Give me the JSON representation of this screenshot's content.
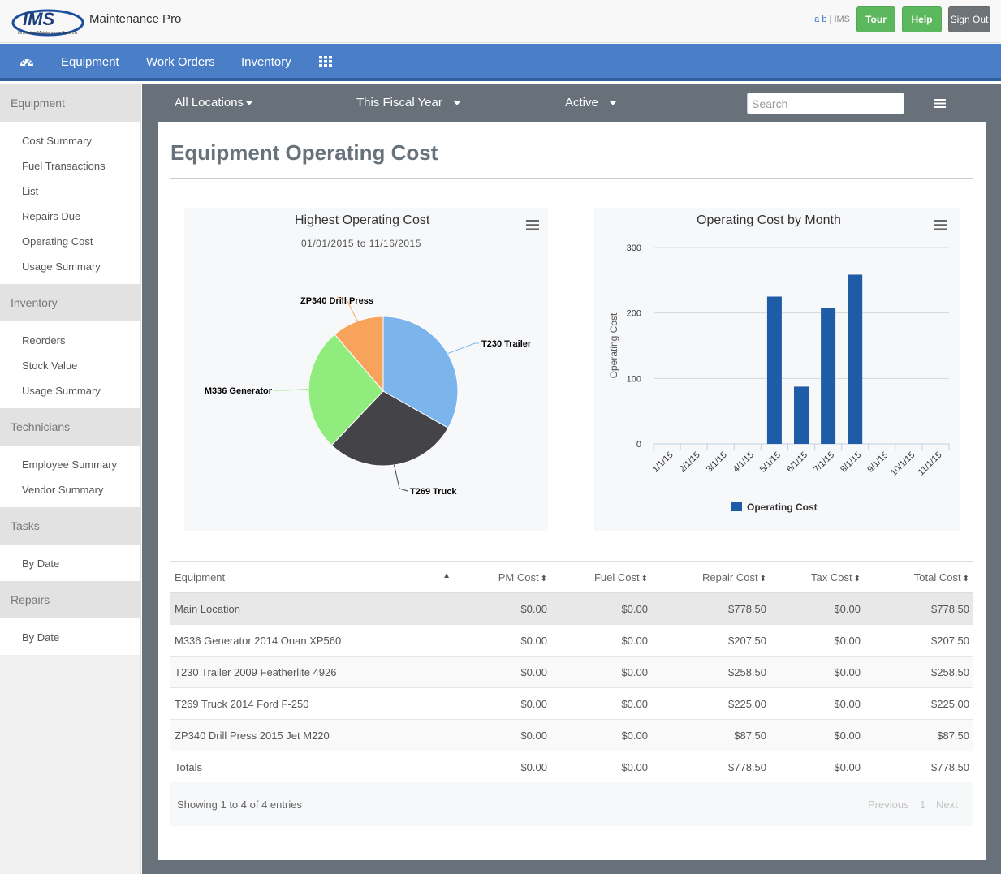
{
  "header": {
    "app_title": "Maintenance Pro",
    "logo_text": "IMS",
    "logo_tagline": "Innovative Maintenance Systems",
    "user_initials": "a b",
    "user_sep": "|",
    "user_company": "IMS",
    "tour_label": "Tour",
    "help_label": "Help",
    "signout_label": "Sign Out"
  },
  "nav": {
    "items": [
      "Equipment",
      "Work Orders",
      "Inventory"
    ]
  },
  "sidebar": {
    "sections": [
      {
        "title": "Equipment",
        "items": [
          "Cost Summary",
          "Fuel Transactions",
          "List",
          "Repairs Due",
          "Operating Cost",
          "Usage Summary"
        ]
      },
      {
        "title": "Inventory",
        "items": [
          "Reorders",
          "Stock Value",
          "Usage Summary"
        ]
      },
      {
        "title": "Technicians",
        "items": [
          "Employee Summary",
          "Vendor Summary"
        ]
      },
      {
        "title": "Tasks",
        "items": [
          "By Date"
        ]
      },
      {
        "title": "Repairs",
        "items": [
          "By Date"
        ]
      }
    ]
  },
  "filters": {
    "location": "All Locations",
    "period": "This Fiscal Year",
    "status": "Active",
    "search_placeholder": "Search"
  },
  "page": {
    "title": "Equipment Operating Cost"
  },
  "chart_data": [
    {
      "type": "pie",
      "title": "Highest Operating Cost",
      "subtitle": "01/01/2015 to 11/16/2015",
      "slices": [
        {
          "label": "T230 Trailer",
          "value": 258.5,
          "color": "#7cb5ec"
        },
        {
          "label": "T269 Truck",
          "value": 225.0,
          "color": "#434348"
        },
        {
          "label": "M336 Generator",
          "value": 207.5,
          "color": "#90ed7d"
        },
        {
          "label": "ZP340 Drill Press",
          "value": 87.5,
          "color": "#f7a35c"
        }
      ]
    },
    {
      "type": "bar",
      "title": "Operating Cost by Month",
      "ylabel": "Operating Cost",
      "xlabel": "",
      "ylim": [
        0,
        300
      ],
      "yticks": [
        "0",
        "100",
        "200",
        "300"
      ],
      "categories": [
        "1/1/15",
        "2/1/15",
        "3/1/15",
        "4/1/15",
        "5/1/15",
        "6/1/15",
        "7/1/15",
        "8/1/15",
        "9/1/15",
        "10/1/15",
        "11/1/15"
      ],
      "series": [
        {
          "name": "Operating Cost",
          "color": "#1f5ca8",
          "values": [
            0,
            0,
            0,
            0,
            225.0,
            87.5,
            207.5,
            258.5,
            0,
            0,
            0
          ]
        }
      ],
      "legend": "bottom-center",
      "grid": true
    }
  ],
  "table": {
    "columns": [
      "Equipment",
      "PM Cost",
      "Fuel Cost",
      "Repair Cost",
      "Tax Cost",
      "Total Cost"
    ],
    "rows": [
      [
        "Main Location",
        "$0.00",
        "$0.00",
        "$778.50",
        "$0.00",
        "$778.50"
      ],
      [
        "M336 Generator 2014 Onan XP560",
        "$0.00",
        "$0.00",
        "$207.50",
        "$0.00",
        "$207.50"
      ],
      [
        "T230 Trailer 2009 Featherlite 4926",
        "$0.00",
        "$0.00",
        "$258.50",
        "$0.00",
        "$258.50"
      ],
      [
        "T269 Truck 2014 Ford F-250",
        "$0.00",
        "$0.00",
        "$225.00",
        "$0.00",
        "$225.00"
      ],
      [
        "ZP340 Drill Press 2015 Jet M220",
        "$0.00",
        "$0.00",
        "$87.50",
        "$0.00",
        "$87.50"
      ]
    ],
    "totals": [
      "Totals",
      "$0.00",
      "$0.00",
      "$778.50",
      "$0.00",
      "$778.50"
    ],
    "showing": "Showing 1 to 4 of 4 entries",
    "prev_label": "Previous",
    "page_label": "1",
    "next_label": "Next"
  }
}
